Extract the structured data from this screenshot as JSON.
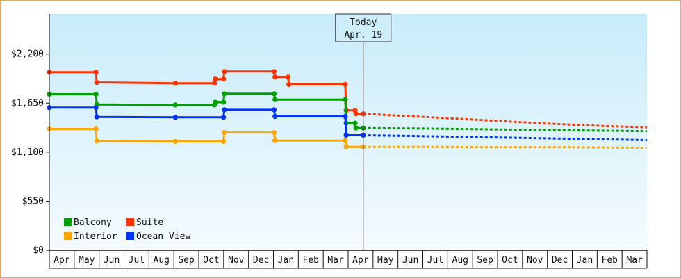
{
  "chart_data": {
    "type": "line",
    "title": "",
    "xlabel": "",
    "ylabel": "",
    "ylim": [
      0,
      2650
    ],
    "y_ticks": [
      {
        "value": 0,
        "label": "$0"
      },
      {
        "value": 550,
        "label": "$550"
      },
      {
        "value": 1100,
        "label": "$1,100"
      },
      {
        "value": 1650,
        "label": "$1,650"
      },
      {
        "value": 2200,
        "label": "$2,200"
      }
    ],
    "x_start": "2023-04-01",
    "x_end": "2025-04-01",
    "x_ticks": [
      "Apr",
      "May",
      "Jun",
      "Jul",
      "Aug",
      "Sep",
      "Oct",
      "Nov",
      "Dec",
      "Jan",
      "Feb",
      "Mar",
      "Apr",
      "May",
      "Jun",
      "Jul",
      "Aug",
      "Sep",
      "Oct",
      "Nov",
      "Dec",
      "Jan",
      "Feb",
      "Mar"
    ],
    "today": {
      "line1": "Today",
      "line2": "Apr. 19",
      "date": "2024-04-19"
    },
    "legend": {
      "position": "bottom-left"
    },
    "grid": false,
    "series": [
      {
        "name": "Suite",
        "color": "#ff3300",
        "history": [
          [
            "2023-04-01",
            1998
          ],
          [
            "2023-05-28",
            1998
          ],
          [
            "2023-05-29",
            1882
          ],
          [
            "2023-09-02",
            1873
          ],
          [
            "2023-10-20",
            1873
          ],
          [
            "2023-10-21",
            1920
          ],
          [
            "2023-10-31",
            1920
          ],
          [
            "2023-11-01",
            2005
          ],
          [
            "2024-01-01",
            2005
          ],
          [
            "2024-01-02",
            1942
          ],
          [
            "2024-01-18",
            1942
          ],
          [
            "2024-01-19",
            1860
          ],
          [
            "2024-03-28",
            1860
          ],
          [
            "2024-03-29",
            1568
          ],
          [
            "2024-04-09",
            1568
          ],
          [
            "2024-04-10",
            1530
          ],
          [
            "2024-04-19",
            1530
          ]
        ],
        "forecast": [
          [
            "2024-04-19",
            1530
          ],
          [
            "2024-06-01",
            1510
          ],
          [
            "2024-08-01",
            1480
          ],
          [
            "2024-10-01",
            1450
          ],
          [
            "2024-12-01",
            1420
          ],
          [
            "2025-02-01",
            1395
          ],
          [
            "2025-04-01",
            1378
          ]
        ]
      },
      {
        "name": "Balcony",
        "color": "#00a000",
        "history": [
          [
            "2023-04-01",
            1750
          ],
          [
            "2023-05-28",
            1750
          ],
          [
            "2023-05-29",
            1635
          ],
          [
            "2023-09-02",
            1630
          ],
          [
            "2023-10-20",
            1630
          ],
          [
            "2023-10-21",
            1660
          ],
          [
            "2023-10-31",
            1660
          ],
          [
            "2023-11-01",
            1755
          ],
          [
            "2024-01-01",
            1755
          ],
          [
            "2024-01-02",
            1690
          ],
          [
            "2024-03-28",
            1690
          ],
          [
            "2024-03-29",
            1425
          ],
          [
            "2024-04-09",
            1425
          ],
          [
            "2024-04-10",
            1370
          ],
          [
            "2024-04-19",
            1370
          ]
        ],
        "forecast": [
          [
            "2024-04-19",
            1370
          ],
          [
            "2024-07-01",
            1365
          ],
          [
            "2024-10-01",
            1355
          ],
          [
            "2025-01-01",
            1345
          ],
          [
            "2025-04-01",
            1335
          ]
        ]
      },
      {
        "name": "Ocean View",
        "color": "#0033ff",
        "history": [
          [
            "2023-04-01",
            1600
          ],
          [
            "2023-05-28",
            1600
          ],
          [
            "2023-05-29",
            1495
          ],
          [
            "2023-09-02",
            1490
          ],
          [
            "2023-10-31",
            1490
          ],
          [
            "2023-11-01",
            1575
          ],
          [
            "2024-01-01",
            1575
          ],
          [
            "2024-01-02",
            1500
          ],
          [
            "2024-03-28",
            1500
          ],
          [
            "2024-03-29",
            1290
          ],
          [
            "2024-04-19",
            1290
          ]
        ],
        "forecast": [
          [
            "2024-04-19",
            1290
          ],
          [
            "2024-07-01",
            1280
          ],
          [
            "2024-10-01",
            1265
          ],
          [
            "2025-01-01",
            1250
          ],
          [
            "2025-04-01",
            1235
          ]
        ]
      },
      {
        "name": "Interior",
        "color": "#ffa500",
        "history": [
          [
            "2023-04-01",
            1360
          ],
          [
            "2023-05-28",
            1360
          ],
          [
            "2023-05-29",
            1225
          ],
          [
            "2023-09-02",
            1220
          ],
          [
            "2023-10-31",
            1220
          ],
          [
            "2023-11-01",
            1320
          ],
          [
            "2024-01-01",
            1320
          ],
          [
            "2024-01-02",
            1230
          ],
          [
            "2024-03-28",
            1230
          ],
          [
            "2024-03-29",
            1160
          ],
          [
            "2024-04-19",
            1160
          ]
        ],
        "forecast": [
          [
            "2024-04-19",
            1160
          ],
          [
            "2024-07-01",
            1160
          ],
          [
            "2024-10-01",
            1155
          ],
          [
            "2025-01-01",
            1155
          ],
          [
            "2025-04-01",
            1150
          ]
        ]
      }
    ],
    "legend_rows": [
      [
        "Balcony",
        "Suite"
      ],
      [
        "Interior",
        "Ocean View"
      ]
    ]
  }
}
